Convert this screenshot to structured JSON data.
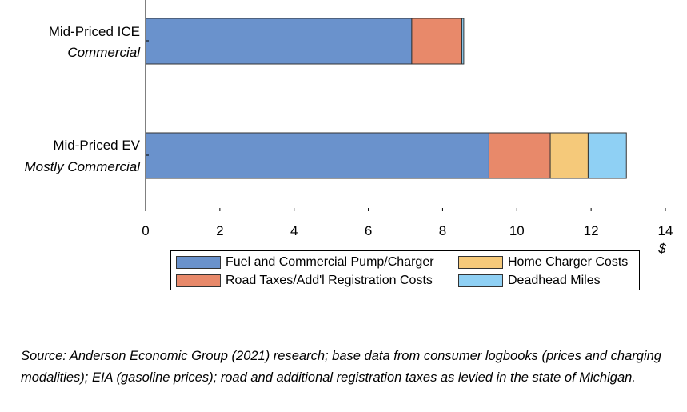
{
  "chart_data": {
    "type": "bar",
    "orientation": "horizontal",
    "stacked": true,
    "categories": [
      {
        "label": "Mid-Priced ICE",
        "sublabel": "Commercial"
      },
      {
        "label": "Mid-Priced EV",
        "sublabel": "Mostly Commercial"
      }
    ],
    "series": [
      {
        "name": "Fuel and Commercial Pump/Charger",
        "color": "#6a92cc",
        "values": [
          7.17,
          9.25
        ]
      },
      {
        "name": "Road Taxes/Add'l Registration Costs",
        "color": "#e8896a",
        "values": [
          1.35,
          1.65
        ]
      },
      {
        "name": "Home Charger Costs",
        "color": "#f5c97a",
        "values": [
          0.0,
          1.02
        ]
      },
      {
        "name": "Deadhead Miles",
        "color": "#8fd0f4",
        "values": [
          0.05,
          1.03
        ]
      }
    ],
    "xlim": [
      0,
      14
    ],
    "xticks": [
      "0",
      "2",
      "4",
      "6",
      "8",
      "10",
      "12",
      "14"
    ],
    "xunit": "$",
    "legend_position": "bottom",
    "grid": false
  },
  "source_note": "Source: Anderson Economic Group (2021) research; base data from consumer logbooks (prices and charging modalities); EIA (gasoline prices); road and additional registration taxes as levied in the state of Michigan."
}
